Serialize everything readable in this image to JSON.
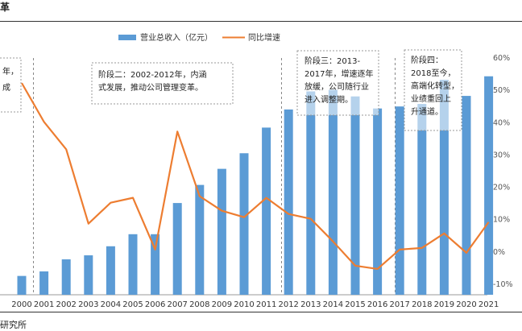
{
  "header": {
    "title_fragment": "革"
  },
  "footer": {
    "source_fragment": "研究所"
  },
  "chart_data": {
    "type": "bar",
    "categories": [
      "2000",
      "2001",
      "2002",
      "2003",
      "2004",
      "2005",
      "2006",
      "2007",
      "2008",
      "2009",
      "2010",
      "2011",
      "2012",
      "2013",
      "2014",
      "2015",
      "2016",
      "2017",
      "2018",
      "2019",
      "2020",
      "2021"
    ],
    "series": [
      {
        "name": "营业总收入（亿元）",
        "type": "bar",
        "axis": "left",
        "color": "#5B9BD5",
        "values": [
          1.5,
          2.4,
          4.8,
          5.6,
          7.4,
          9.8,
          9.8,
          16.0,
          19.6,
          22.8,
          25.9,
          31.0,
          34.6,
          38.2,
          38.5,
          37.2,
          34.8,
          35.2,
          35.7,
          40.5,
          37.3,
          41.2
        ]
      },
      {
        "name": "同比增速",
        "type": "line",
        "axis": "right",
        "color": "#ED7D31",
        "values": [
          52,
          40,
          31.5,
          8.5,
          15,
          16.5,
          0.5,
          37,
          17,
          12.5,
          10.5,
          16.5,
          11.5,
          10,
          3,
          -4.5,
          -5.5,
          0.5,
          1,
          5.5,
          -0.5,
          9
        ]
      }
    ],
    "ylim_left": [
      0,
      45
    ],
    "ylim_right": [
      -10,
      60
    ],
    "right_ticks": [
      "-10%",
      "0%",
      "10%",
      "20%",
      "30%",
      "40%",
      "50%",
      "60%"
    ],
    "legend_position": "top",
    "grid": false,
    "annotations": [
      {
        "id": "stage1",
        "lines": [
          "年，",
          "成"
        ]
      },
      {
        "id": "stage2",
        "lines": [
          "阶段二：2002-2012年，内涵",
          "式发展，推动公司管理变革。"
        ]
      },
      {
        "id": "stage3",
        "lines": [
          "阶段三：2013-",
          "2017年，增速逐年",
          "放缓，公司随行业",
          "进入调整期。"
        ]
      },
      {
        "id": "stage4",
        "lines": [
          "阶段四：",
          "2018至今，",
          "高端化转型，",
          "业绩重回上",
          "升通道。"
        ]
      }
    ]
  }
}
